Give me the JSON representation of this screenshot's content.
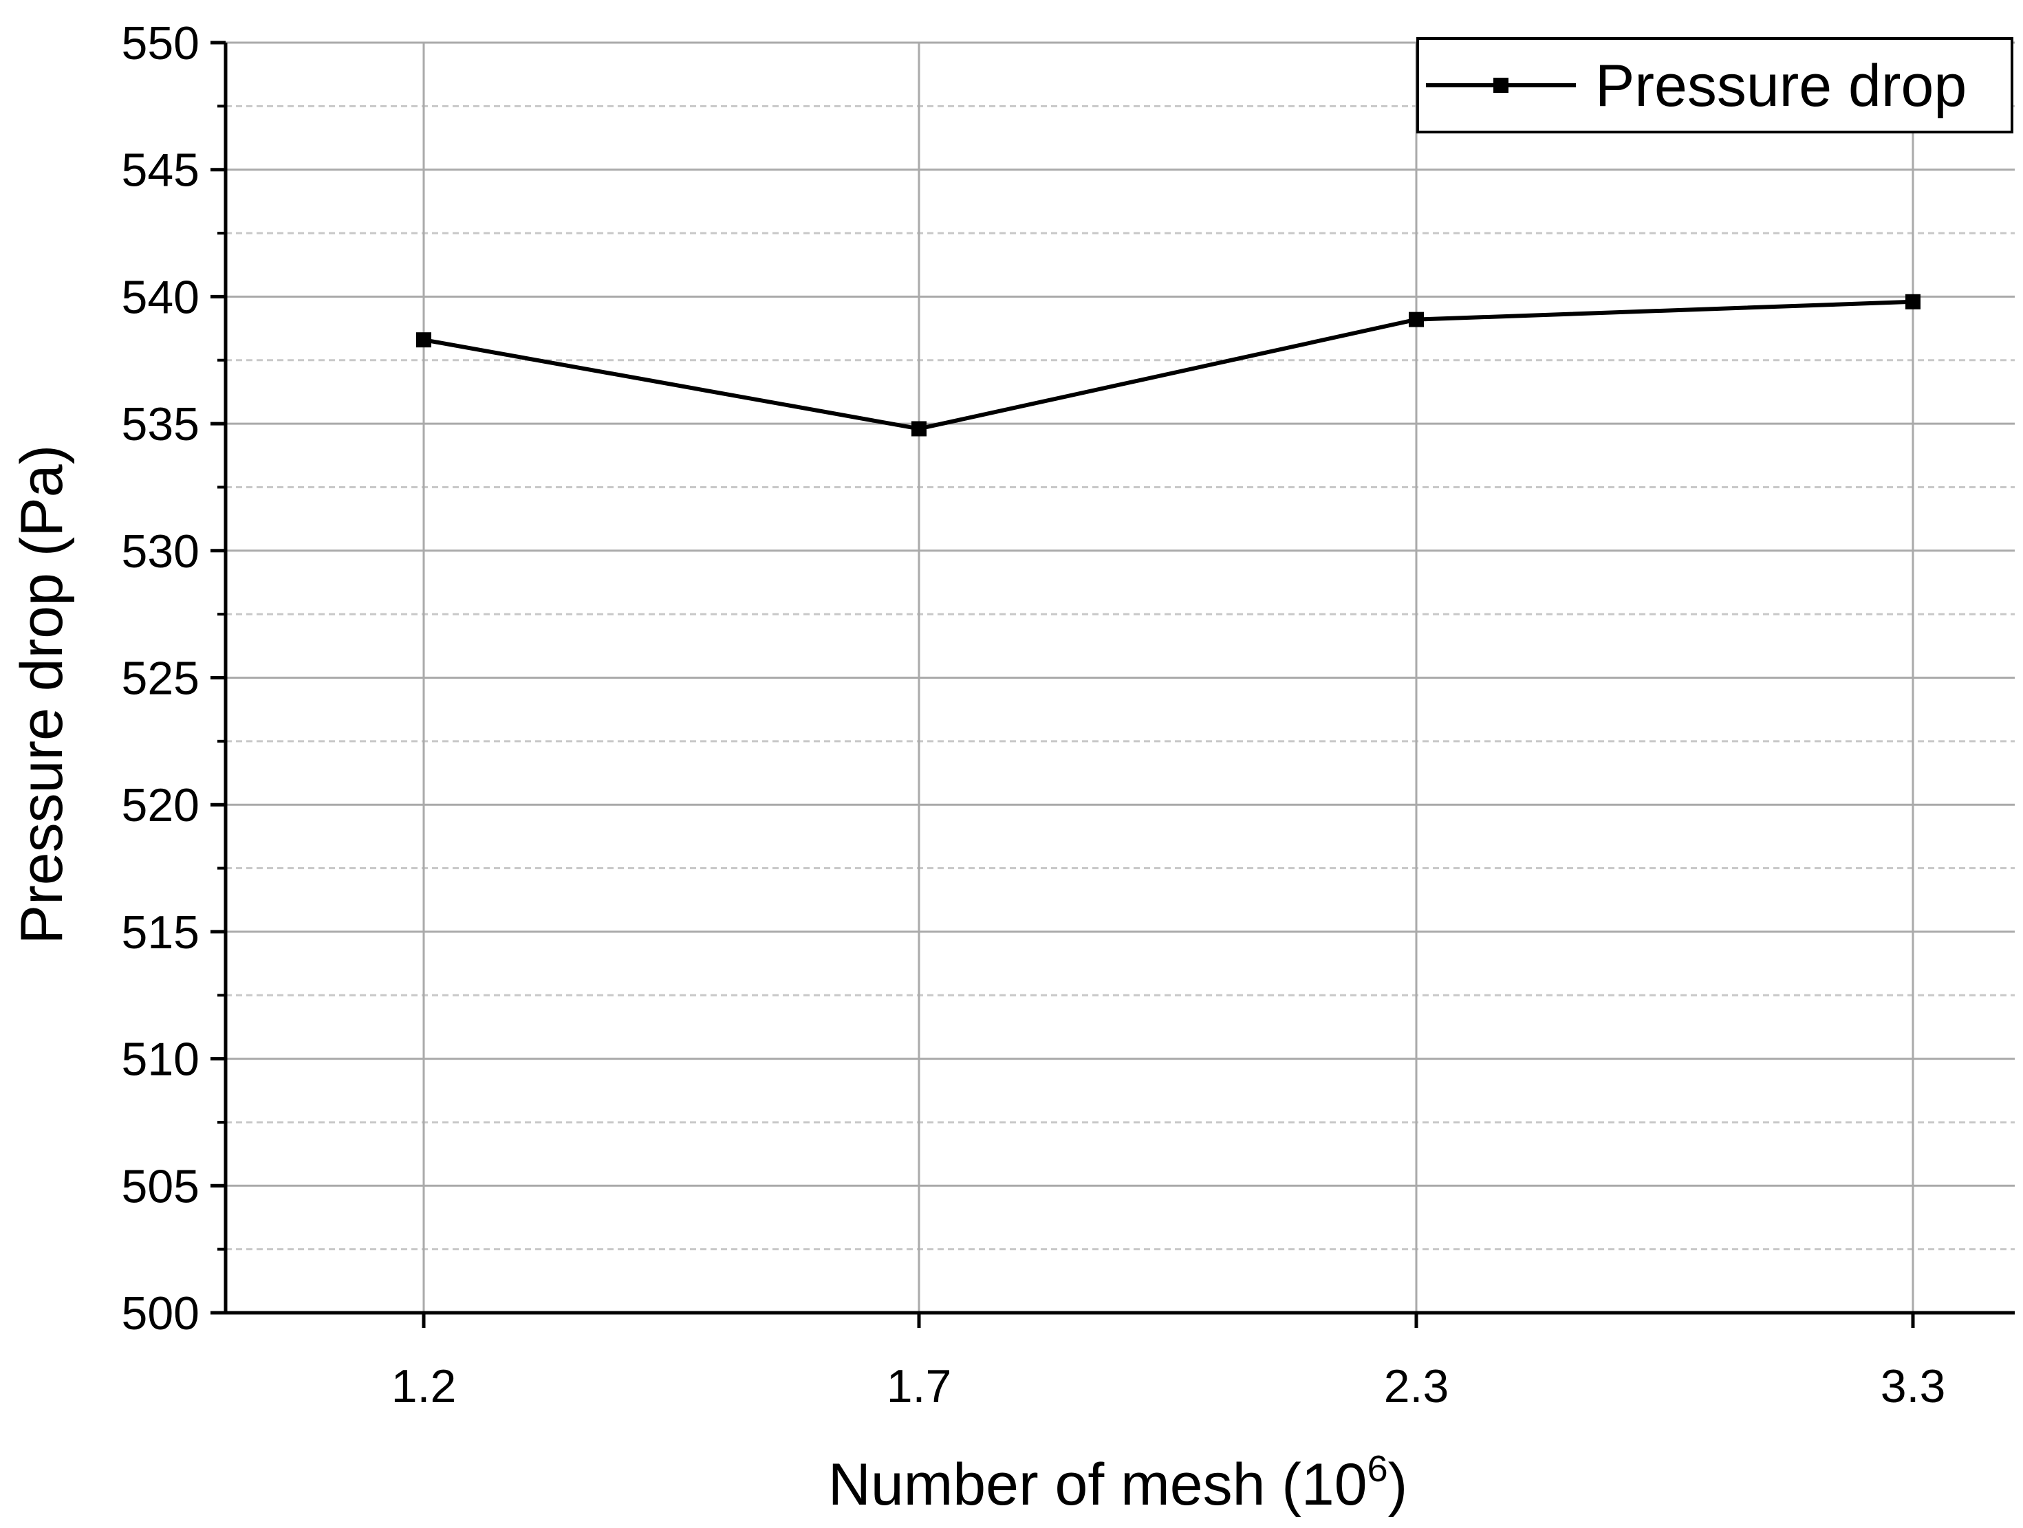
{
  "chart_data": {
    "type": "line",
    "categories": [
      "1.2",
      "1.7",
      "2.3",
      "3.3"
    ],
    "series": [
      {
        "name": "Pressure drop",
        "values": [
          538.3,
          534.8,
          539.1,
          539.8
        ],
        "color": "#000000",
        "marker": "square"
      }
    ],
    "xlabel": {
      "main": "Number of mesh (10",
      "sup": "6",
      "end": ")"
    },
    "ylabel": "Pressure drop (Pa)",
    "ylim": [
      500,
      550
    ],
    "yticks": [
      "500",
      "505",
      "510",
      "515",
      "520",
      "525",
      "530",
      "535",
      "540",
      "545",
      "550"
    ],
    "grid": true,
    "legend_position": "top-right",
    "colors": {
      "line": "#000000",
      "grid_major": "#aaaaaa",
      "grid_minor": "#c8c8c8"
    }
  }
}
